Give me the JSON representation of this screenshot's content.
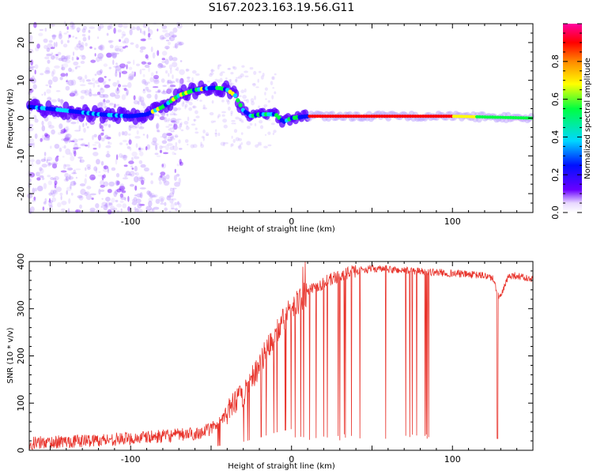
{
  "title": "S167.2023.163.19.56.G11",
  "chart_data": [
    {
      "type": "heatmap",
      "xlabel": "Height of straight line (km)",
      "ylabel": "Frequency (Hz)",
      "xlim": [
        -163,
        150
      ],
      "ylim": [
        -25,
        25
      ],
      "xticks": [
        -100,
        0,
        100
      ],
      "yticks": [
        -20,
        -10,
        0,
        10,
        20
      ],
      "colorbar": {
        "label": "Normalized spectral amplitude",
        "range": [
          0,
          1
        ],
        "ticks": [
          "0.0",
          "0.2",
          "0.4",
          "0.6",
          "0.8"
        ],
        "colors": [
          "#ffffff",
          "#6a00ff",
          "#0000ff",
          "#00e5ff",
          "#00ff55",
          "#ffff00",
          "#ff8800",
          "#ff0000",
          "#ff00aa"
        ]
      },
      "ridge": {
        "x": [
          -163,
          -140,
          -120,
          -100,
          -90,
          -80,
          -70,
          -60,
          -50,
          -45,
          -40,
          -35,
          -30,
          -25,
          -20,
          -10,
          -5,
          0,
          10,
          20,
          40,
          60,
          80,
          100,
          120,
          150
        ],
        "y": [
          3,
          2,
          1,
          0.5,
          1,
          3,
          6,
          7.5,
          8,
          8,
          7.5,
          6,
          2,
          0.5,
          1,
          1,
          -1,
          0,
          0.5,
          0.5,
          0.5,
          0.5,
          0.5,
          0.5,
          0.3,
          0
        ]
      },
      "scatter_note": "diffuse low-amplitude spectral power spread across frequency for heights below about -80 km"
    },
    {
      "type": "line",
      "xlabel": "Height of straight line (km)",
      "ylabel": "SNR (10 * v/v)",
      "xlim": [
        -163,
        150
      ],
      "ylim": [
        0,
        400
      ],
      "xticks": [
        -100,
        0,
        100
      ],
      "yticks": [
        0,
        100,
        200,
        300,
        400
      ],
      "color": "#e8342c",
      "baseline": {
        "x": [
          -163,
          -100,
          -80,
          -60,
          -50,
          -40,
          -30,
          -20,
          -10,
          0,
          10,
          20,
          30,
          40,
          50,
          100,
          120,
          125,
          128,
          130,
          135,
          140,
          150
        ],
        "y": [
          15,
          25,
          30,
          35,
          45,
          80,
          120,
          180,
          250,
          300,
          335,
          355,
          370,
          380,
          385,
          375,
          370,
          365,
          330,
          325,
          370,
          370,
          360
        ]
      }
    }
  ]
}
